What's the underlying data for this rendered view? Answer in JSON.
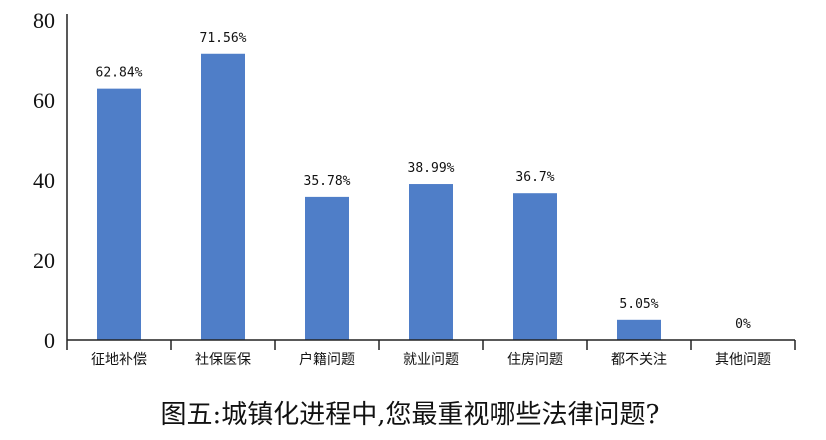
{
  "chart_data": {
    "type": "bar",
    "title": "图五:城镇化进程中,您最重视哪些法律问题?",
    "categories": [
      "征地补偿",
      "社保医保",
      "户籍问题",
      "就业问题",
      "住房问题",
      "都不关注",
      "其他问题"
    ],
    "values": [
      62.84,
      71.56,
      35.78,
      38.99,
      36.7,
      5.05,
      0
    ],
    "value_labels": [
      "62.84%",
      "71.56%",
      "35.78%",
      "38.99%",
      "36.7%",
      "5.05%",
      "0%"
    ],
    "xlabel": "",
    "ylabel": "",
    "ylim": [
      0,
      80
    ],
    "yticks": [
      "0",
      "20",
      "40",
      "60",
      "80"
    ],
    "bar_color": "#4f7ec8",
    "grid": false,
    "legend": "none"
  }
}
